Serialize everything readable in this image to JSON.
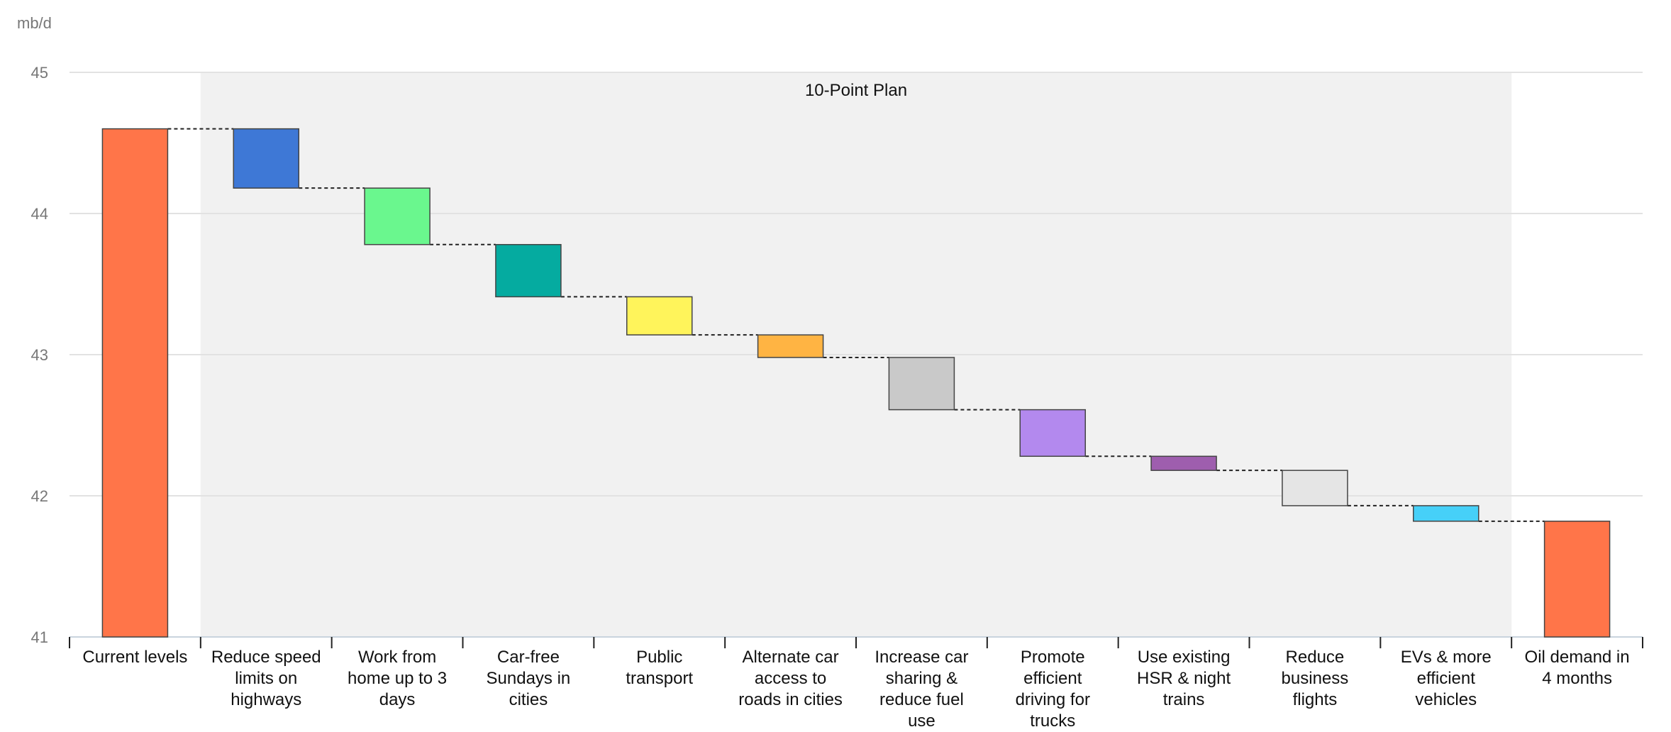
{
  "chart_data": {
    "type": "waterfall",
    "unit_label": "mb/d",
    "ylim": [
      41,
      45
    ],
    "yticks": [
      41,
      42,
      43,
      44,
      45
    ],
    "grid": true,
    "band": {
      "label": "10-Point Plan",
      "from_category": 1,
      "to_category": 10,
      "color": "#f1f1f1"
    },
    "categories": [
      "Current levels",
      "Reduce speed limits on highways",
      "Work from home up to 3 days",
      "Car-free Sundays in cities",
      "Public transport",
      "Alternate car access to roads in cities",
      "Increase car sharing & reduce fuel use",
      "Promote efficient driving for trucks",
      "Use existing HSR & night trains",
      "Reduce business flights",
      "EVs & more efficient vehicles",
      "Oil demand in 4 months"
    ],
    "category_lines": [
      [
        "Current levels"
      ],
      [
        "Reduce speed",
        "limits on",
        "highways"
      ],
      [
        "Work from",
        "home up to 3",
        "days"
      ],
      [
        "Car-free",
        "Sundays in",
        "cities"
      ],
      [
        "Public",
        "transport"
      ],
      [
        "Alternate car",
        "access to",
        "roads in cities"
      ],
      [
        "Increase car",
        "sharing &",
        "reduce fuel",
        "use"
      ],
      [
        "Promote",
        "efficient",
        "driving for",
        "trucks"
      ],
      [
        "Use existing",
        "HSR & night",
        "trains"
      ],
      [
        "Reduce",
        "business",
        "flights"
      ],
      [
        "EVs & more",
        "efficient",
        "vehicles"
      ],
      [
        "Oil demand in",
        "4 months"
      ]
    ],
    "bars": [
      {
        "start": 41,
        "end": 44.6,
        "color": "#ff7549"
      },
      {
        "start": 44.6,
        "end": 44.18,
        "color": "#3e78d6"
      },
      {
        "start": 44.18,
        "end": 43.78,
        "color": "#6af78e"
      },
      {
        "start": 43.78,
        "end": 43.41,
        "color": "#05aba0"
      },
      {
        "start": 43.41,
        "end": 43.14,
        "color": "#fff45b"
      },
      {
        "start": 43.14,
        "end": 42.98,
        "color": "#ffb443"
      },
      {
        "start": 42.98,
        "end": 42.61,
        "color": "#c9c9c9"
      },
      {
        "start": 42.61,
        "end": 42.28,
        "color": "#b389ee"
      },
      {
        "start": 42.28,
        "end": 42.18,
        "color": "#9e5eae"
      },
      {
        "start": 42.18,
        "end": 41.93,
        "color": "#e5e5e5"
      },
      {
        "start": 41.93,
        "end": 41.82,
        "color": "#46d0f8"
      },
      {
        "start": 41,
        "end": 41.82,
        "color": "#ff7549"
      }
    ]
  }
}
